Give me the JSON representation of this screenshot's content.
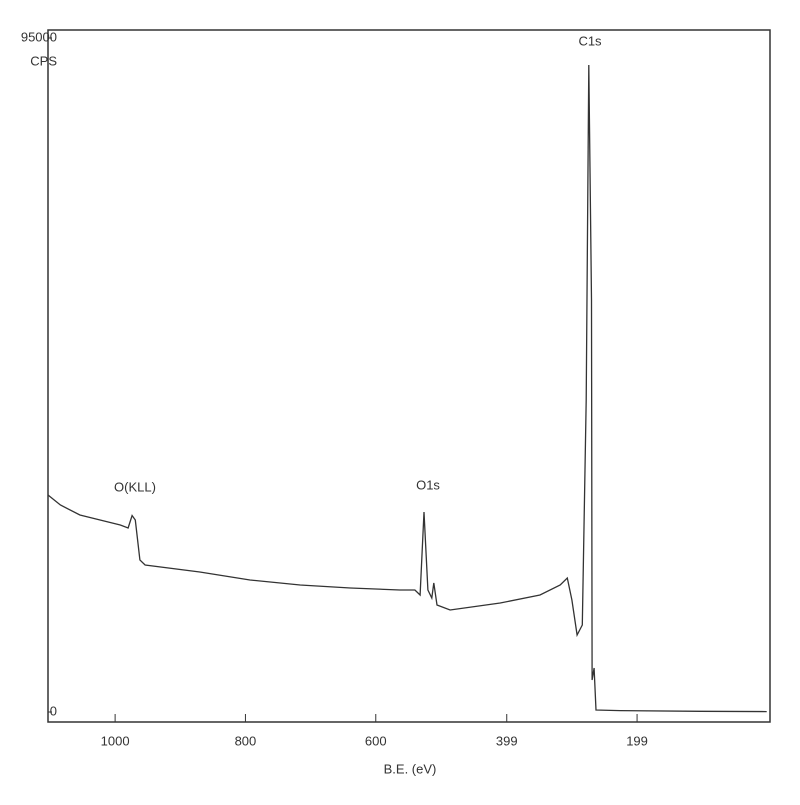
{
  "chart_data": {
    "type": "line",
    "xlabel": "B.E. (eV)",
    "ylabel": "CPS",
    "annotations": [
      "O(KLL)",
      "O1s",
      "C1s"
    ],
    "x": [
      1103,
      1084,
      1054,
      1023,
      992,
      980,
      974,
      969,
      962,
      954,
      870,
      793,
      716,
      639,
      563,
      540,
      532,
      526,
      520,
      514,
      511,
      506,
      486,
      409,
      348,
      317,
      306,
      299,
      291,
      283,
      277,
      273,
      269,
      268,
      265,
      262,
      225,
      102,
      0
    ],
    "series": [
      {
        "color": "#333333",
        "values": [
          30586,
          29180,
          27770,
          27060,
          26360,
          25930,
          27700,
          27060,
          21420,
          20720,
          19730,
          18600,
          17900,
          17480,
          17200,
          17200,
          16490,
          28190,
          17200,
          16070,
          18180,
          15080,
          14380,
          15360,
          16490,
          17900,
          18890,
          15790,
          10850,
          12260,
          43980,
          91200,
          58070,
          4510,
          6200,
          280,
          200,
          100,
          50
        ]
      }
    ],
    "xlim": [
      1103,
      -5
    ],
    "xticks": [
      1000,
      800,
      600,
      399,
      199
    ],
    "ylim": [
      0,
      95000
    ],
    "yticks": [
      0,
      95000
    ]
  }
}
